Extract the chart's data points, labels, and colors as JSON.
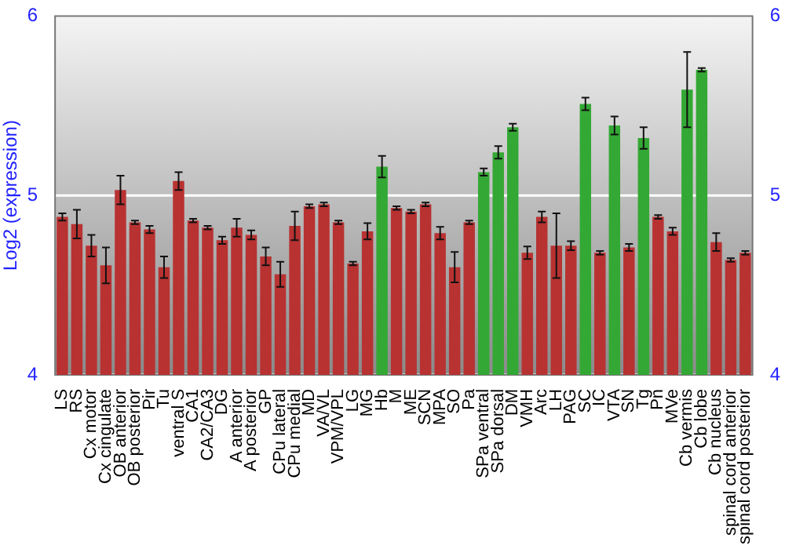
{
  "chart_data": {
    "type": "bar",
    "ylabel": "Log2 (expression)",
    "categories": [
      "LS",
      "RS",
      "Cx motor",
      "Cx cingulate",
      "OB anterior",
      "OB posterior",
      "Pir",
      "Tu",
      "ventral S",
      "CA1",
      "CA2/CA3",
      "DG",
      "A anterior",
      "A posterior",
      "GP",
      "CPu lateral",
      "CPu medial",
      "MD",
      "VA/VL",
      "VPM/VPL",
      "LG",
      "MG",
      "Hb",
      "M",
      "ME",
      "SCN",
      "MPA",
      "SO",
      "Pa",
      "SPa ventral",
      "SPa dorsal",
      "DM",
      "VMH",
      "Arc",
      "LH",
      "PAG",
      "SC",
      "IC",
      "VTA",
      "SN",
      "Tg",
      "Pn",
      "MVe",
      "Cb vermis",
      "Cb lobe",
      "Cb nucleus",
      "spinal cord anterior",
      "spinal cord posterior"
    ],
    "values": [
      4.88,
      4.84,
      4.72,
      4.61,
      5.03,
      4.85,
      4.81,
      4.6,
      5.08,
      4.86,
      4.82,
      4.75,
      4.82,
      4.78,
      4.66,
      4.56,
      4.83,
      4.94,
      4.95,
      4.85,
      4.62,
      4.8,
      5.16,
      4.93,
      4.91,
      4.95,
      4.79,
      4.6,
      4.85,
      5.13,
      5.24,
      5.38,
      4.68,
      4.88,
      4.72,
      4.72,
      5.51,
      4.68,
      5.39,
      4.71,
      5.32,
      4.88,
      4.8,
      5.59,
      5.7,
      4.74,
      4.64,
      4.68
    ],
    "errors": [
      0.02,
      0.08,
      0.06,
      0.1,
      0.08,
      0.01,
      0.02,
      0.06,
      0.05,
      0.01,
      0.01,
      0.02,
      0.05,
      0.025,
      0.05,
      0.07,
      0.08,
      0.01,
      0.01,
      0.01,
      0.01,
      0.045,
      0.06,
      0.01,
      0.01,
      0.01,
      0.035,
      0.085,
      0.01,
      0.02,
      0.035,
      0.02,
      0.035,
      0.03,
      0.18,
      0.025,
      0.035,
      0.01,
      0.05,
      0.02,
      0.06,
      0.01,
      0.02,
      0.21,
      0.01,
      0.05,
      0.01,
      0.01
    ],
    "colors": [
      "#b83232",
      "#b83232",
      "#b83232",
      "#b83232",
      "#b83232",
      "#b83232",
      "#b83232",
      "#b83232",
      "#b83232",
      "#b83232",
      "#b83232",
      "#b83232",
      "#b83232",
      "#b83232",
      "#b83232",
      "#b83232",
      "#b83232",
      "#b83232",
      "#b83232",
      "#b83232",
      "#b83232",
      "#b83232",
      "#34a834",
      "#b83232",
      "#b83232",
      "#b83232",
      "#b83232",
      "#b83232",
      "#b83232",
      "#34a834",
      "#34a834",
      "#34a834",
      "#b83232",
      "#b83232",
      "#b83232",
      "#b83232",
      "#34a834",
      "#b83232",
      "#34a834",
      "#b83232",
      "#34a834",
      "#b83232",
      "#b83232",
      "#34a834",
      "#34a834",
      "#b83232",
      "#b83232",
      "#b83232"
    ],
    "ylim": [
      4,
      6
    ],
    "yticks": [
      4,
      5,
      6
    ],
    "y2lim": [
      4,
      6
    ],
    "y2ticks": [
      4,
      5,
      6
    ],
    "grid": "y"
  }
}
